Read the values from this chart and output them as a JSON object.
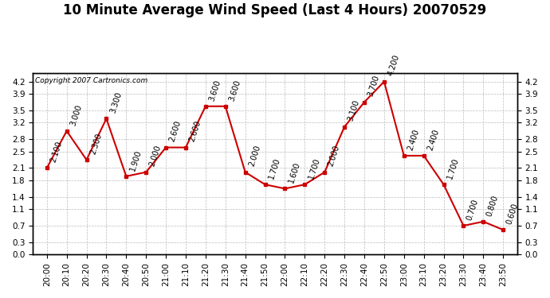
{
  "title": "10 Minute Average Wind Speed (Last 4 Hours) 20070529",
  "copyright": "Copyright 2007 Cartronics.com",
  "x_labels": [
    "20:00",
    "20:10",
    "20:20",
    "20:30",
    "20:40",
    "20:50",
    "21:00",
    "21:10",
    "21:20",
    "21:30",
    "21:40",
    "21:50",
    "22:00",
    "22:10",
    "22:20",
    "22:30",
    "22:40",
    "22:50",
    "23:00",
    "23:10",
    "23:20",
    "23:30",
    "23:40",
    "23:50"
  ],
  "y_values": [
    2.1,
    3.0,
    2.3,
    3.3,
    1.9,
    2.0,
    2.6,
    2.6,
    3.6,
    3.6,
    2.0,
    1.7,
    1.6,
    1.7,
    2.0,
    3.1,
    3.7,
    4.2,
    2.4,
    2.4,
    1.7,
    0.7,
    0.8,
    0.6
  ],
  "labels": [
    "2.100",
    "3.000",
    "2.300",
    "3.300",
    "1.900",
    "2.000",
    "2.600",
    "2.600",
    "3.600",
    "3.600",
    "2.000",
    "1.700",
    "1.600",
    "1.700",
    "2.000",
    "3.100",
    "3.700",
    "4.200",
    "2.400",
    "2.400",
    "1.700",
    "0.700",
    "0.800",
    "0.600"
  ],
  "line_color": "#cc0000",
  "marker_color": "#cc0000",
  "bg_color": "#ffffff",
  "grid_color": "#bbbbbb",
  "ylim_min": 0.0,
  "ylim_max": 4.4,
  "yticks": [
    0.0,
    0.3,
    0.7,
    1.1,
    1.4,
    1.8,
    2.1,
    2.5,
    2.8,
    3.2,
    3.5,
    3.9,
    4.2
  ],
  "ytick_labels": [
    "0.0",
    "0.3",
    "0.7",
    "1.1",
    "1.4",
    "1.8",
    "2.1",
    "2.5",
    "2.8",
    "3.2",
    "3.5",
    "3.9",
    "4.2"
  ],
  "title_fontsize": 12,
  "label_fontsize": 7,
  "tick_fontsize": 7.5,
  "copyright_fontsize": 6.5
}
